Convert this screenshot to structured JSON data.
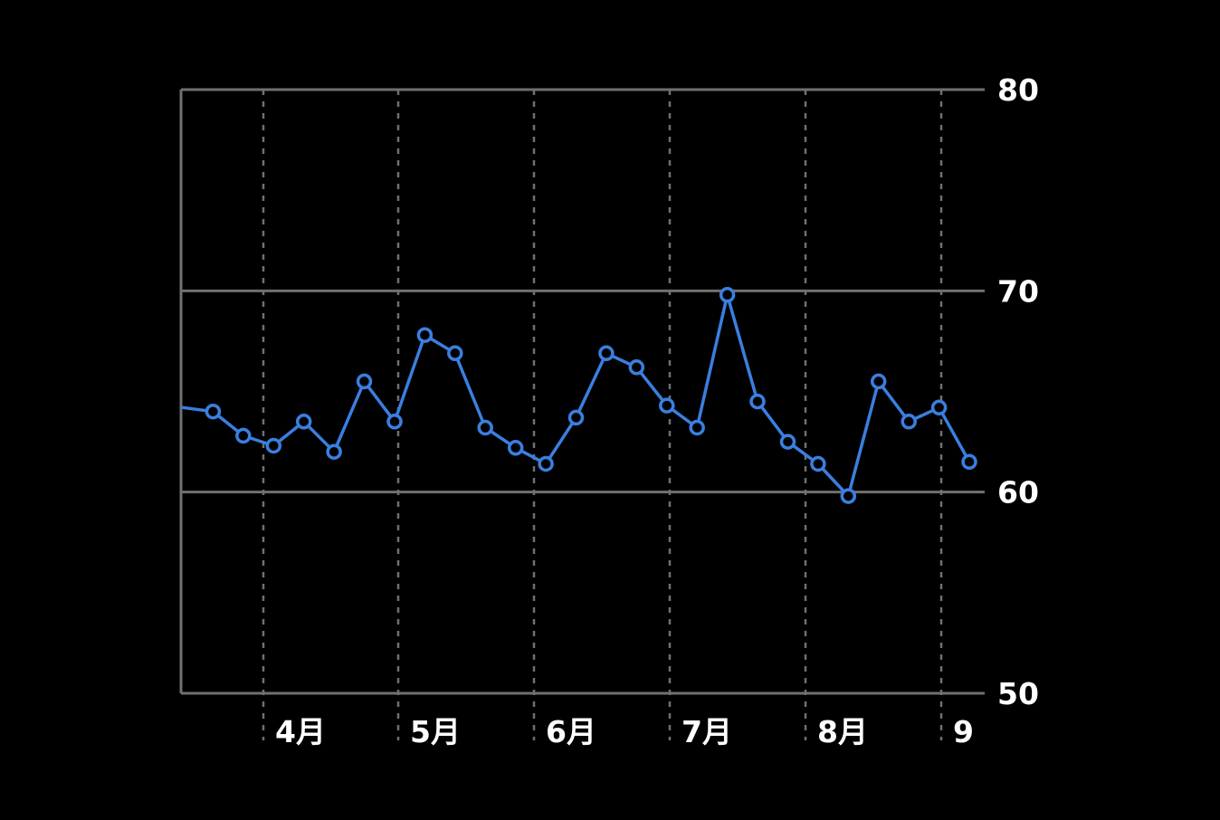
{
  "chart_data": {
    "type": "line",
    "title": "",
    "xlabel": "",
    "ylabel": "",
    "ylim": [
      50,
      80
    ],
    "y_axis_side": "right",
    "y_ticks": [
      "80",
      "70",
      "60",
      "50"
    ],
    "x_ticks": [
      "4月",
      "5月",
      "6月",
      "7月",
      "8月",
      "9"
    ],
    "grid": {
      "horizontal": "solid",
      "vertical": "dotted"
    },
    "series": [
      {
        "values": [
          64.2,
          64.0,
          62.8,
          62.3,
          63.5,
          62.0,
          65.5,
          63.5,
          67.8,
          66.9,
          63.2,
          62.2,
          61.4,
          63.7,
          66.9,
          66.2,
          64.3,
          63.2,
          69.8,
          64.5,
          62.5,
          61.4,
          59.8,
          65.5,
          63.5,
          64.2,
          61.5
        ]
      }
    ],
    "colors": {
      "line": "#3a7fe0",
      "marker_fill": "#000000",
      "axis": "#707070",
      "grid": "#707070",
      "text": "#ffffff",
      "background": "#000000"
    }
  }
}
